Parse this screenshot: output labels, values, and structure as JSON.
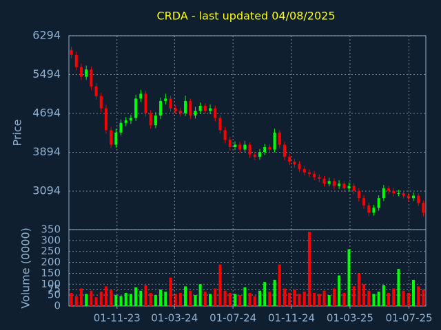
{
  "chart_data": [
    {
      "type": "candlestick",
      "title": "CRDA - last updated 04/08/2025",
      "ylabel": "Price",
      "xlim": [
        -0.5,
        71.5
      ],
      "ylim": [
        2301,
        6294
      ],
      "yticks": [
        3094,
        3894,
        4694,
        5494,
        6294
      ],
      "up_color": "#00ff00",
      "down_color": "#ff0000",
      "open": [
        6000,
        5900,
        5650,
        5450,
        5600,
        5250,
        5050,
        4800,
        4350,
        4050,
        4300,
        4500,
        4550,
        4600,
        5000,
        5100,
        4700,
        4450,
        4650,
        4950,
        5000,
        4800,
        4750,
        4700,
        4950,
        4650,
        4750,
        4850,
        4750,
        4800,
        4600,
        4350,
        4150,
        4000,
        4050,
        3950,
        4050,
        3850,
        3800,
        3900,
        4000,
        3950,
        4300,
        4050,
        3800,
        3700,
        3650,
        3550,
        3480,
        3450,
        3380,
        3350,
        3250,
        3300,
        3200,
        3250,
        3150,
        3200,
        3100,
        2950,
        2800,
        2650,
        2750,
        2950,
        3150,
        3100,
        3050,
        3050,
        3000,
        2950,
        3000,
        2850
      ],
      "high": [
        6070,
        5970,
        5720,
        5680,
        5660,
        5320,
        5120,
        4870,
        4420,
        4380,
        4570,
        4620,
        4670,
        5080,
        5180,
        5160,
        4760,
        4720,
        5020,
        5100,
        5060,
        4870,
        4810,
        5060,
        5000,
        4830,
        4920,
        4900,
        4880,
        4860,
        4660,
        4420,
        4210,
        4120,
        4110,
        4130,
        4100,
        3910,
        3960,
        4070,
        4060,
        4380,
        4350,
        4110,
        3860,
        3760,
        3710,
        3610,
        3540,
        3510,
        3440,
        3410,
        3370,
        3360,
        3320,
        3300,
        3270,
        3260,
        3160,
        3010,
        2860,
        2810,
        3010,
        3220,
        3200,
        3160,
        3120,
        3100,
        3060,
        3070,
        3050,
        2900
      ],
      "low": [
        5830,
        5580,
        5380,
        5390,
        5180,
        4980,
        4720,
        4280,
        3980,
        3990,
        4240,
        4430,
        4480,
        4540,
        4930,
        4630,
        4380,
        4390,
        4580,
        4880,
        4730,
        4680,
        4630,
        4640,
        4580,
        4590,
        4680,
        4690,
        4680,
        4530,
        4280,
        4080,
        3930,
        3940,
        3880,
        3890,
        3780,
        3730,
        3740,
        3840,
        3880,
        3890,
        3980,
        3730,
        3630,
        3580,
        3490,
        3420,
        3380,
        3320,
        3280,
        3190,
        3190,
        3130,
        3140,
        3080,
        3090,
        3030,
        2880,
        2730,
        2580,
        2590,
        2690,
        2890,
        3030,
        2980,
        2990,
        2940,
        2880,
        2890,
        2790,
        2580
      ],
      "close": [
        5900,
        5650,
        5450,
        5600,
        5250,
        5050,
        4800,
        4350,
        4050,
        4300,
        4500,
        4550,
        4600,
        5000,
        5100,
        4700,
        4450,
        4650,
        4950,
        5000,
        4800,
        4750,
        4700,
        4950,
        4650,
        4750,
        4850,
        4750,
        4800,
        4600,
        4350,
        4150,
        4000,
        4050,
        3950,
        4050,
        3850,
        3800,
        3900,
        4000,
        3950,
        4300,
        4050,
        3800,
        3700,
        3650,
        3550,
        3480,
        3450,
        3380,
        3350,
        3250,
        3300,
        3200,
        3250,
        3150,
        3200,
        3100,
        2950,
        2800,
        2650,
        2750,
        2950,
        3150,
        3100,
        3050,
        3050,
        3000,
        2950,
        3000,
        2850,
        2650
      ]
    },
    {
      "type": "bar",
      "ylabel": "Volume (0000)",
      "xlim": [
        -0.5,
        71.5
      ],
      "ylim": [
        0,
        350
      ],
      "yticks": [
        0,
        50,
        75,
        100,
        150,
        200,
        250,
        300,
        350
      ],
      "xticks": [
        {
          "value": 9.2,
          "label": "01-11-23"
        },
        {
          "value": 20.8,
          "label": "01-03-24"
        },
        {
          "value": 32.6,
          "label": "01-07-24"
        },
        {
          "value": 44.4,
          "label": "01-11-24"
        },
        {
          "value": 56.2,
          "label": "01-03-25"
        },
        {
          "value": 68.1,
          "label": "01-07-25"
        }
      ],
      "values": [
        60,
        45,
        80,
        55,
        70,
        40,
        65,
        90,
        75,
        50,
        45,
        60,
        55,
        85,
        70,
        95,
        60,
        50,
        75,
        65,
        130,
        55,
        60,
        90,
        70,
        50,
        100,
        65,
        55,
        80,
        190,
        70,
        60,
        55,
        50,
        85,
        60,
        45,
        70,
        110,
        65,
        120,
        190,
        80,
        60,
        75,
        55,
        65,
        340,
        60,
        55,
        70,
        50,
        80,
        140,
        60,
        260,
        90,
        150,
        100,
        70,
        55,
        65,
        95,
        60,
        80,
        170,
        70,
        60,
        120,
        90,
        75
      ]
    }
  ]
}
